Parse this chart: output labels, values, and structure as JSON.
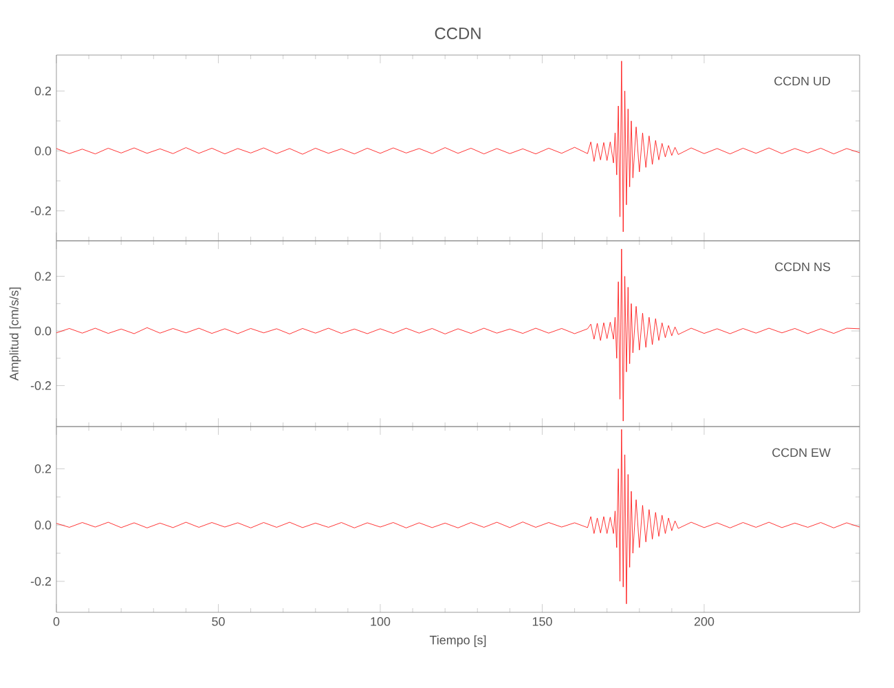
{
  "chart_data": [
    {
      "type": "line",
      "title": "CCDN",
      "annotations": [
        "CCDN   UD"
      ],
      "tick_labels": "y",
      "x": [
        0,
        4,
        8,
        12,
        16,
        20,
        24,
        28,
        32,
        36,
        40,
        44,
        48,
        52,
        56,
        60,
        64,
        68,
        72,
        76,
        80,
        84,
        88,
        92,
        96,
        100,
        104,
        108,
        112,
        116,
        120,
        124,
        128,
        132,
        136,
        140,
        144,
        148,
        152,
        156,
        160,
        164,
        165,
        166,
        167,
        168,
        169,
        170,
        171,
        172,
        172.5,
        173,
        173.5,
        174,
        174.5,
        175,
        175.5,
        176,
        176.5,
        177,
        177.5,
        178,
        179,
        180,
        181,
        182,
        183,
        184,
        185,
        186,
        187,
        188,
        189,
        190,
        191,
        192,
        196,
        200,
        204,
        208,
        212,
        216,
        220,
        224,
        228,
        232,
        236,
        240,
        244,
        248
      ],
      "series": [
        {
          "color": "#ff0000",
          "values": [
            0.008,
            -0.009,
            0.006,
            -0.01,
            0.009,
            -0.007,
            0.01,
            -0.008,
            0.007,
            -0.009,
            0.011,
            -0.008,
            0.009,
            -0.01,
            0.008,
            -0.007,
            0.01,
            -0.009,
            0.008,
            -0.011,
            0.009,
            -0.008,
            0.007,
            -0.01,
            0.009,
            -0.008,
            0.01,
            -0.007,
            0.008,
            -0.009,
            0.011,
            -0.008,
            0.009,
            -0.01,
            0.008,
            -0.009,
            0.007,
            -0.01,
            0.009,
            -0.008,
            0.012,
            -0.009,
            0.03,
            -0.035,
            0.025,
            -0.03,
            0.028,
            -0.032,
            0.03,
            -0.04,
            0.06,
            -0.08,
            0.15,
            -0.22,
            0.3,
            -0.27,
            0.2,
            -0.18,
            0.14,
            -0.12,
            0.1,
            -0.09,
            0.08,
            -0.07,
            0.06,
            -0.055,
            0.05,
            -0.045,
            0.035,
            -0.03,
            0.025,
            -0.02,
            0.018,
            -0.015,
            0.012,
            -0.012,
            0.01,
            -0.009,
            0.008,
            -0.01,
            0.009,
            -0.008,
            0.01,
            -0.009,
            0.008,
            -0.007,
            0.009,
            -0.01,
            0.008,
            -0.006
          ]
        }
      ],
      "xlim": [
        0,
        248
      ],
      "xticks": [
        0,
        50,
        100,
        150,
        200
      ],
      "ylim": [
        -0.3,
        0.32
      ],
      "yticks": [
        {
          "value": -0.2,
          "label": "-0.2"
        },
        {
          "value": 0,
          "label": "0.0"
        },
        {
          "value": 0.2,
          "label": "0.2"
        }
      ]
    },
    {
      "type": "line",
      "ylabel": "Amplitud [cm/s/s]",
      "annotations": [
        "CCDN   NS"
      ],
      "tick_labels": "y",
      "x": [
        0,
        4,
        8,
        12,
        16,
        20,
        24,
        28,
        32,
        36,
        40,
        44,
        48,
        52,
        56,
        60,
        64,
        68,
        72,
        76,
        80,
        84,
        88,
        92,
        96,
        100,
        104,
        108,
        112,
        116,
        120,
        124,
        128,
        132,
        136,
        140,
        144,
        148,
        152,
        156,
        160,
        164,
        165,
        166,
        167,
        168,
        169,
        170,
        171,
        172,
        172.5,
        173,
        173.5,
        174,
        174.5,
        175,
        175.5,
        176,
        176.5,
        177,
        177.5,
        178,
        179,
        180,
        181,
        182,
        183,
        184,
        185,
        186,
        187,
        188,
        189,
        190,
        191,
        192,
        196,
        200,
        204,
        208,
        212,
        216,
        220,
        224,
        228,
        232,
        236,
        240,
        244,
        248
      ],
      "series": [
        {
          "color": "#ff0000",
          "values": [
            -0.007,
            0.009,
            -0.008,
            0.01,
            -0.009,
            0.007,
            -0.01,
            0.012,
            -0.008,
            0.009,
            -0.007,
            0.01,
            -0.009,
            0.008,
            -0.01,
            0.009,
            -0.007,
            0.008,
            -0.011,
            0.009,
            -0.008,
            0.01,
            -0.009,
            0.007,
            -0.01,
            0.008,
            -0.009,
            0.01,
            -0.008,
            0.009,
            -0.011,
            0.008,
            -0.009,
            0.01,
            -0.008,
            0.007,
            -0.009,
            0.01,
            -0.008,
            0.009,
            -0.01,
            0.008,
            0.025,
            -0.03,
            0.028,
            -0.035,
            0.03,
            -0.028,
            0.032,
            -0.03,
            0.05,
            -0.1,
            0.18,
            -0.25,
            0.3,
            -0.33,
            0.2,
            -0.15,
            0.16,
            -0.12,
            0.1,
            -0.08,
            0.09,
            -0.07,
            0.065,
            -0.06,
            0.05,
            -0.05,
            0.045,
            -0.035,
            0.03,
            -0.025,
            0.02,
            -0.018,
            0.015,
            -0.013,
            0.01,
            -0.009,
            0.008,
            -0.01,
            0.009,
            -0.008,
            0.01,
            -0.007,
            0.009,
            -0.01,
            0.008,
            -0.009,
            0.01,
            0.008
          ]
        }
      ],
      "xlim": [
        0,
        248
      ],
      "xticks": [
        0,
        50,
        100,
        150,
        200
      ],
      "ylim": [
        -0.35,
        0.33
      ],
      "yticks": [
        {
          "value": -0.2,
          "label": "-0.2"
        },
        {
          "value": 0,
          "label": "0.0"
        },
        {
          "value": 0.2,
          "label": "0.2"
        }
      ]
    },
    {
      "type": "line",
      "xlabel": "Tiempo [s]",
      "annotations": [
        "CCDN   EW"
      ],
      "x": [
        0,
        4,
        8,
        12,
        16,
        20,
        24,
        28,
        32,
        36,
        40,
        44,
        48,
        52,
        56,
        60,
        64,
        68,
        72,
        76,
        80,
        84,
        88,
        92,
        96,
        100,
        104,
        108,
        112,
        116,
        120,
        124,
        128,
        132,
        136,
        140,
        144,
        148,
        152,
        156,
        160,
        164,
        165,
        166,
        167,
        168,
        169,
        170,
        171,
        172,
        172.5,
        173,
        173.5,
        174,
        174.5,
        175,
        175.5,
        176,
        176.5,
        177,
        177.5,
        178,
        179,
        180,
        181,
        182,
        183,
        184,
        185,
        186,
        187,
        188,
        189,
        190,
        191,
        192,
        196,
        200,
        204,
        208,
        212,
        216,
        220,
        224,
        228,
        232,
        236,
        240,
        244,
        248
      ],
      "series": [
        {
          "color": "#ff0000",
          "values": [
            0.006,
            -0.008,
            0.009,
            -0.007,
            0.01,
            -0.009,
            0.008,
            -0.01,
            0.007,
            -0.009,
            0.01,
            -0.008,
            0.009,
            -0.007,
            0.008,
            -0.01,
            0.009,
            -0.008,
            0.01,
            -0.009,
            0.007,
            -0.008,
            0.009,
            -0.01,
            0.008,
            -0.007,
            0.009,
            -0.01,
            0.008,
            -0.009,
            0.007,
            -0.01,
            0.009,
            -0.008,
            0.01,
            -0.009,
            0.011,
            -0.008,
            0.009,
            -0.007,
            0.008,
            -0.009,
            0.03,
            -0.03,
            0.025,
            -0.028,
            0.03,
            -0.03,
            0.028,
            -0.03,
            0.05,
            -0.08,
            0.2,
            -0.2,
            0.34,
            -0.22,
            0.25,
            -0.28,
            0.18,
            -0.15,
            0.12,
            -0.1,
            0.09,
            -0.08,
            0.07,
            -0.06,
            0.055,
            -0.05,
            0.045,
            -0.04,
            0.035,
            -0.03,
            0.025,
            -0.02,
            0.015,
            -0.012,
            0.01,
            -0.009,
            0.008,
            -0.01,
            0.009,
            -0.008,
            0.01,
            -0.009,
            0.007,
            -0.008,
            0.009,
            -0.01,
            0.008,
            -0.007
          ]
        }
      ],
      "xlim": [
        0,
        248
      ],
      "xticks": [
        0,
        50,
        100,
        150,
        200
      ],
      "ylim": [
        -0.31,
        0.35
      ],
      "yticks": [
        {
          "value": -0.2,
          "label": "-0.2"
        },
        {
          "value": 0,
          "label": "0.0"
        },
        {
          "value": 0.2,
          "label": "0.2"
        }
      ]
    }
  ]
}
